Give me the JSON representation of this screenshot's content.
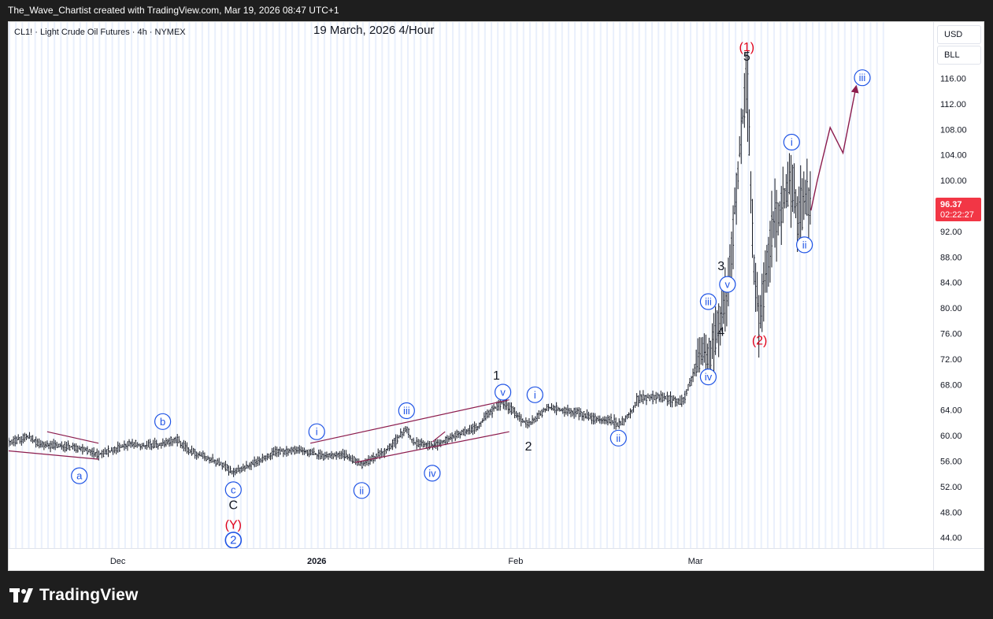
{
  "header": {
    "attribution": "The_Wave_Chartist created with TradingView.com, Mar 19, 2026 08:47 UTC+1"
  },
  "brand": {
    "name": "TradingView"
  },
  "symbol_line": "CL1! · Light Crude Oil Futures · 4h · NYMEX",
  "chart_title": "19 March, 2026 4/Hour",
  "scale_buttons": {
    "currency": "USD",
    "unit": "BLL"
  },
  "price_badge": {
    "price": "96.37",
    "countdown": "02:22:27",
    "color": "#f23645"
  },
  "colors": {
    "background": "#ffffff",
    "candles": "#131722",
    "alt_band": "#eaf0fc",
    "trendline": "#8c1c4d",
    "wave_blue": "#1e53e5",
    "wave_red": "#e0001a"
  },
  "chart_data": {
    "type": "candlestick",
    "title": "19 March, 2026 4/Hour",
    "xlabel": "",
    "ylabel": "",
    "ylim": [
      42,
      121
    ],
    "y_ticks": [
      "116.00",
      "112.00",
      "108.00",
      "104.00",
      "100.00",
      "96.00",
      "92.00",
      "88.00",
      "84.00",
      "80.00",
      "76.00",
      "72.00",
      "68.00",
      "64.00",
      "60.00",
      "56.00",
      "52.00",
      "48.00",
      "44.00"
    ],
    "x_ticks": [
      {
        "label": "Dec",
        "date": "2025-12-01",
        "bold": false
      },
      {
        "label": "2026",
        "date": "2026-01-01",
        "bold": true
      },
      {
        "label": "Feb",
        "date": "2026-02-01",
        "bold": false
      },
      {
        "label": "Mar",
        "date": "2026-03-01",
        "bold": false
      }
    ],
    "price_path": [
      [
        "2025-11-14",
        59.0
      ],
      [
        "2025-11-17",
        59.8
      ],
      [
        "2025-11-19",
        58.6
      ],
      [
        "2025-11-21",
        58.4
      ],
      [
        "2025-11-24",
        58.2
      ],
      [
        "2025-11-26",
        57.8
      ],
      [
        "2025-11-28",
        57.0
      ],
      [
        "2025-12-01",
        57.9
      ],
      [
        "2025-12-03",
        58.8
      ],
      [
        "2025-12-05",
        58.4
      ],
      [
        "2025-12-08",
        58.6
      ],
      [
        "2025-12-10",
        59.5
      ],
      [
        "2025-12-12",
        57.8
      ],
      [
        "2025-12-15",
        56.4
      ],
      [
        "2025-12-17",
        55.6
      ],
      [
        "2025-12-19",
        54.2
      ],
      [
        "2025-12-22",
        55.5
      ],
      [
        "2025-12-24",
        56.6
      ],
      [
        "2025-12-26",
        57.5
      ],
      [
        "2025-12-29",
        57.8
      ],
      [
        "2025-12-31",
        57.3
      ],
      [
        "2026-01-02",
        56.8
      ],
      [
        "2026-01-05",
        57.1
      ],
      [
        "2026-01-07",
        56.0
      ],
      [
        "2026-01-08",
        55.4
      ],
      [
        "2026-01-12",
        57.8
      ],
      [
        "2026-01-14",
        60.0
      ],
      [
        "2026-01-15",
        61.2
      ],
      [
        "2026-01-16",
        59.0
      ],
      [
        "2026-01-19",
        58.4
      ],
      [
        "2026-01-21",
        59.2
      ],
      [
        "2026-01-23",
        60.2
      ],
      [
        "2026-01-26",
        61.2
      ],
      [
        "2026-01-28",
        63.8
      ],
      [
        "2026-01-30",
        65.3
      ],
      [
        "2026-02-02",
        62.5
      ],
      [
        "2026-02-03",
        61.7
      ],
      [
        "2026-02-05",
        63.5
      ],
      [
        "2026-02-06",
        64.5
      ],
      [
        "2026-02-09",
        63.8
      ],
      [
        "2026-02-11",
        63.6
      ],
      [
        "2026-02-13",
        62.6
      ],
      [
        "2026-02-16",
        62.3
      ],
      [
        "2026-02-17",
        61.6
      ],
      [
        "2026-02-19",
        63.7
      ],
      [
        "2026-02-20",
        65.8
      ],
      [
        "2026-02-23",
        66.1
      ],
      [
        "2026-02-25",
        65.9
      ],
      [
        "2026-02-27",
        65.2
      ],
      [
        "2026-03-02",
        73.0
      ],
      [
        "2026-03-03",
        72.0
      ],
      [
        "2026-03-04",
        75.5
      ],
      [
        "2026-03-05",
        78.5
      ],
      [
        "2026-03-06",
        82.0
      ],
      [
        "2026-03-09",
        117.0
      ],
      [
        "2026-03-10",
        88.0
      ],
      [
        "2026-03-11",
        77.5
      ],
      [
        "2026-03-12",
        85.5
      ],
      [
        "2026-03-13",
        93.5
      ],
      [
        "2026-03-16",
        99.5
      ],
      [
        "2026-03-17",
        94.0
      ],
      [
        "2026-03-18",
        97.5
      ],
      [
        "2026-03-19",
        95.3
      ]
    ],
    "projection": [
      [
        "2026-03-19",
        95.3
      ],
      [
        "2026-03-20",
        100.0
      ],
      [
        "2026-03-22",
        108.3
      ],
      [
        "2026-03-24",
        104.3
      ],
      [
        "2026-03-26",
        114.5
      ]
    ],
    "trendlines": [
      {
        "from": [
          "2025-11-20",
          60.6
        ],
        "to": [
          "2025-11-28",
          58.8
        ]
      },
      {
        "from": [
          "2025-11-14",
          57.6
        ],
        "to": [
          "2025-11-28",
          56.3
        ]
      },
      {
        "from": [
          "2025-12-31",
          58.8
        ],
        "to": [
          "2026-01-31",
          65.6
        ]
      },
      {
        "from": [
          "2026-01-07",
          55.8
        ],
        "to": [
          "2026-01-31",
          60.6
        ]
      },
      {
        "from": [
          "2026-01-19",
          59.0
        ],
        "to": [
          "2026-01-21",
          60.6
        ]
      }
    ],
    "annotations": [
      {
        "label": "a",
        "date": "2025-11-25",
        "price": 53.7,
        "style": "circle",
        "color": "#1e53e5"
      },
      {
        "label": "b",
        "date": "2025-12-08",
        "price": 62.2,
        "style": "circle",
        "color": "#1e53e5"
      },
      {
        "label": "c",
        "date": "2025-12-19",
        "price": 51.5,
        "style": "circle",
        "color": "#1e53e5"
      },
      {
        "label": "C",
        "date": "2025-12-19",
        "price": 49.2,
        "style": "text",
        "color": "#131722"
      },
      {
        "label": "(Y)",
        "date": "2025-12-19",
        "price": 46.1,
        "style": "text",
        "color": "#e0001a"
      },
      {
        "label": "2",
        "date": "2025-12-19",
        "price": 43.6,
        "style": "circle-bold",
        "color": "#1e53e5"
      },
      {
        "label": "i",
        "date": "2026-01-01",
        "price": 60.6,
        "style": "circle",
        "color": "#1e53e5"
      },
      {
        "label": "ii",
        "date": "2026-01-08",
        "price": 51.4,
        "style": "circle",
        "color": "#1e53e5"
      },
      {
        "label": "iii",
        "date": "2026-01-15",
        "price": 63.9,
        "style": "circle",
        "color": "#1e53e5"
      },
      {
        "label": "iv",
        "date": "2026-01-19",
        "price": 54.1,
        "style": "circle",
        "color": "#1e53e5"
      },
      {
        "label": "v",
        "date": "2026-01-30",
        "price": 66.8,
        "style": "circle",
        "color": "#1e53e5"
      },
      {
        "label": "1",
        "date": "2026-01-29",
        "price": 69.5,
        "style": "text",
        "color": "#131722"
      },
      {
        "label": "i",
        "date": "2026-02-04",
        "price": 66.4,
        "style": "circle",
        "color": "#1e53e5"
      },
      {
        "label": "2",
        "date": "2026-02-03",
        "price": 58.4,
        "style": "text",
        "color": "#131722"
      },
      {
        "label": "ii",
        "date": "2026-02-17",
        "price": 59.6,
        "style": "circle",
        "color": "#1e53e5"
      },
      {
        "label": "iv",
        "date": "2026-03-03",
        "price": 69.2,
        "style": "circle",
        "color": "#1e53e5"
      },
      {
        "label": "iii",
        "date": "2026-03-03",
        "price": 81.0,
        "style": "circle",
        "color": "#1e53e5"
      },
      {
        "label": "4",
        "date": "2026-03-05",
        "price": 76.4,
        "style": "text",
        "color": "#131722"
      },
      {
        "label": "v",
        "date": "2026-03-06",
        "price": 83.7,
        "style": "circle",
        "color": "#1e53e5"
      },
      {
        "label": "3",
        "date": "2026-03-05",
        "price": 86.7,
        "style": "text",
        "color": "#131722"
      },
      {
        "label": "5",
        "date": "2026-03-09",
        "price": 119.5,
        "style": "text",
        "color": "#131722"
      },
      {
        "label": "(1)",
        "date": "2026-03-09",
        "price": 121.0,
        "style": "text",
        "color": "#e0001a"
      },
      {
        "label": "(2)",
        "date": "2026-03-11",
        "price": 75.0,
        "style": "text",
        "color": "#e0001a"
      },
      {
        "label": "i",
        "date": "2026-03-16",
        "price": 106.0,
        "style": "circle",
        "color": "#1e53e5"
      },
      {
        "label": "ii",
        "date": "2026-03-18",
        "price": 89.9,
        "style": "circle",
        "color": "#1e53e5"
      },
      {
        "label": "iii",
        "date": "2026-03-27",
        "price": 116.1,
        "style": "circle",
        "color": "#1e53e5"
      }
    ],
    "grid": false,
    "legend": "none"
  }
}
